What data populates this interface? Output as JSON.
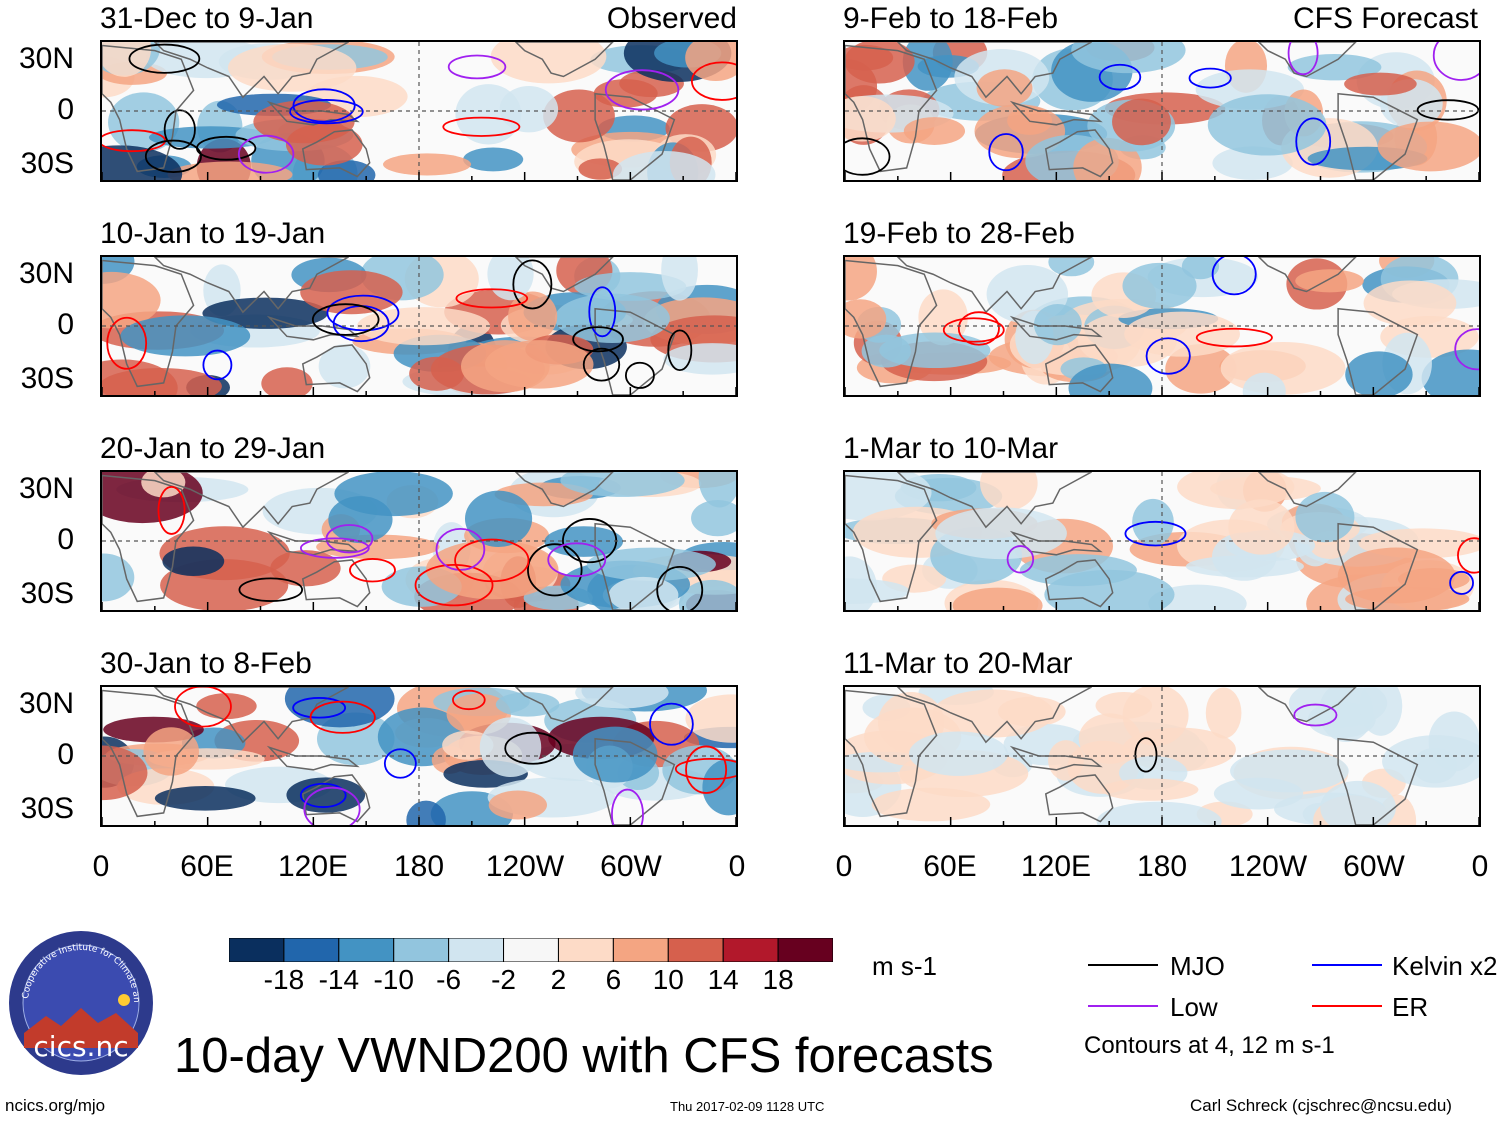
{
  "chart_data": {
    "type": "heatmap",
    "title": "10-day VWND200 with CFS forecasts",
    "variable": "VWND200",
    "units": "m s-1",
    "columns": [
      {
        "label": "Observed",
        "panels": [
          "31-Dec to 9-Jan",
          "10-Jan to 19-Jan",
          "20-Jan to 29-Jan",
          "30-Jan to 8-Feb"
        ]
      },
      {
        "label": "CFS Forecast",
        "panels": [
          "9-Feb to 18-Feb",
          "19-Feb to 28-Feb",
          "1-Mar to 10-Mar",
          "11-Mar to 20-Mar"
        ]
      }
    ],
    "y_ticks": [
      "30N",
      "0",
      "30S"
    ],
    "x_ticks": [
      "0",
      "60E",
      "120E",
      "180",
      "120W",
      "60W",
      "0"
    ],
    "xlim": [
      0,
      360
    ],
    "ylim": [
      -40,
      40
    ],
    "colorbar": {
      "ticks": [
        "-18",
        "-14",
        "-10",
        "-6",
        "-2",
        "2",
        "6",
        "10",
        "14",
        "18"
      ],
      "colors": [
        "#0a2f5e",
        "#2166ac",
        "#4393c3",
        "#92c5de",
        "#d1e5f0",
        "#f7f7f7",
        "#fddbc7",
        "#f4a582",
        "#d6604d",
        "#b2182b",
        "#67001f"
      ]
    },
    "legend": [
      {
        "name": "MJO",
        "color": "#000000"
      },
      {
        "name": "Kelvin x2",
        "color": "#0000ff"
      },
      {
        "name": "Low",
        "color": "#a020f0"
      },
      {
        "name": "ER",
        "color": "#ff0000"
      }
    ],
    "contour_note": "Contours at 4, 12 m s-1"
  },
  "footer": {
    "logo_text": "cics.nc",
    "logo_ring_text": "Cooperative Institute for Climate and Satellites",
    "left": "ncics.org/mjo",
    "center": "Thu 2017-02-09 1128 UTC",
    "right": "Carl Schreck (cjschrec@ncsu.edu)"
  }
}
